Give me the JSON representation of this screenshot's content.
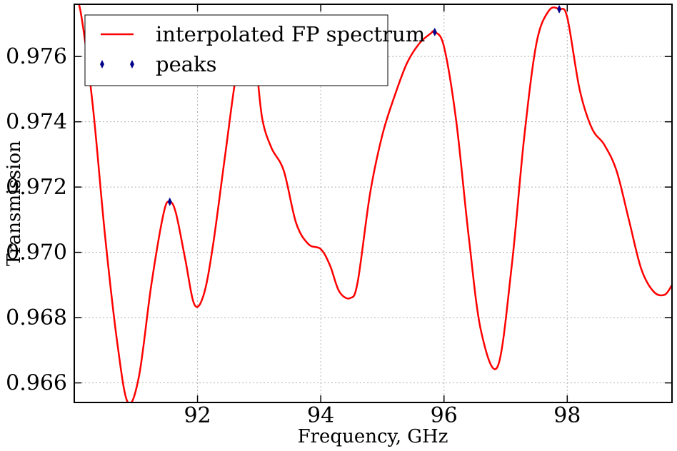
{
  "chart_data": {
    "type": "line",
    "title": "",
    "xlabel": "Frequency, GHz",
    "ylabel": "Transmission",
    "xlim": [
      90.0,
      99.7
    ],
    "ylim": [
      0.9654,
      0.9776
    ],
    "xticks": [
      92,
      94,
      96,
      98
    ],
    "xtick_labels": [
      "92",
      "94",
      "96",
      "98"
    ],
    "yticks": [
      0.966,
      0.968,
      0.97,
      0.972,
      0.974,
      0.976
    ],
    "ytick_labels": [
      "0.966",
      "0.968",
      "0.970",
      "0.972",
      "0.974",
      "0.976"
    ],
    "grid": true,
    "legend_position": "top-left",
    "series": [
      {
        "name": "interpolated FP spectrum",
        "kind": "line",
        "color": "#ff0000",
        "x": [
          90.0,
          90.1,
          90.3,
          90.5,
          90.7,
          90.87,
          91.05,
          91.25,
          91.45,
          91.55,
          91.65,
          91.8,
          91.95,
          92.1,
          92.25,
          92.45,
          92.65,
          92.85,
          92.95,
          93.05,
          93.2,
          93.4,
          93.6,
          93.8,
          94.0,
          94.15,
          94.3,
          94.48,
          94.6,
          94.8,
          95.0,
          95.2,
          95.4,
          95.6,
          95.78,
          95.85,
          96.0,
          96.2,
          96.4,
          96.6,
          96.87,
          97.1,
          97.3,
          97.5,
          97.7,
          97.87,
          98.0,
          98.2,
          98.4,
          98.6,
          98.8,
          99.0,
          99.2,
          99.4,
          99.58,
          99.7
        ],
        "y": [
          0.9776,
          0.9774,
          0.9745,
          0.9705,
          0.9672,
          0.9654,
          0.9662,
          0.969,
          0.9712,
          0.97155,
          0.9712,
          0.9698,
          0.9684,
          0.9687,
          0.9702,
          0.973,
          0.9757,
          0.977,
          0.9758,
          0.9741,
          0.9732,
          0.9725,
          0.9709,
          0.97025,
          0.9701,
          0.9696,
          0.9688,
          0.9686,
          0.9691,
          0.9718,
          0.9736,
          0.9748,
          0.9758,
          0.9764,
          0.9767,
          0.97675,
          0.9763,
          0.974,
          0.9705,
          0.9676,
          0.9665,
          0.9696,
          0.9735,
          0.9764,
          0.9774,
          0.97745,
          0.9772,
          0.975,
          0.9738,
          0.9733,
          0.9725,
          0.971,
          0.9695,
          0.9688,
          0.9687,
          0.969
        ]
      },
      {
        "name": "peaks",
        "kind": "scatter",
        "marker": "thin-diamond",
        "color": "#00008b",
        "x": [
          91.55,
          95.85,
          97.87
        ],
        "y": [
          0.97155,
          0.97675,
          0.97745
        ]
      }
    ]
  }
}
